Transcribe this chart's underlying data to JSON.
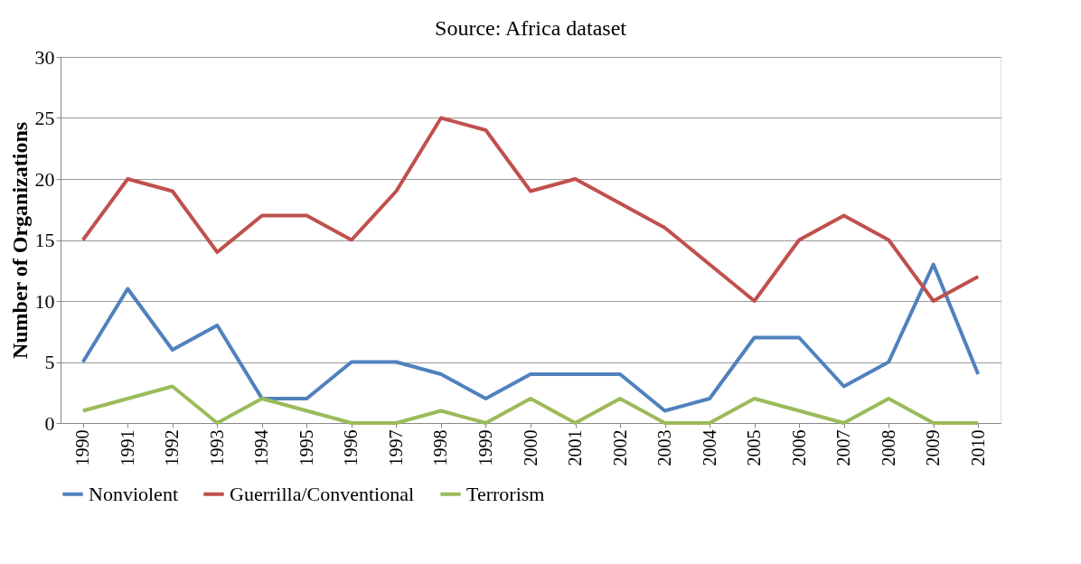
{
  "chart_data": {
    "type": "line",
    "title": "Source: Africa dataset",
    "ylabel": "Number of Organizations",
    "categories": [
      "1990",
      "1991",
      "1992",
      "1993",
      "1994",
      "1995",
      "1996",
      "1997",
      "1998",
      "1999",
      "2000",
      "2001",
      "2002",
      "2003",
      "2004",
      "2005",
      "2006",
      "2007",
      "2008",
      "2009",
      "2010"
    ],
    "series": [
      {
        "name": "Nonviolent",
        "color": "#4f81bd",
        "values": [
          5,
          11,
          6,
          8,
          2,
          2,
          5,
          5,
          4,
          2,
          4,
          4,
          4,
          1,
          2,
          7,
          7,
          3,
          5,
          13,
          4
        ]
      },
      {
        "name": "Guerrilla/Conventional",
        "color": "#c0504d",
        "values": [
          15,
          20,
          19,
          14,
          17,
          17,
          15,
          19,
          25,
          24,
          19,
          20,
          18,
          16,
          13,
          10,
          15,
          17,
          15,
          10,
          12
        ]
      },
      {
        "name": "Terrorism",
        "color": "#9bbb59",
        "values": [
          1,
          2,
          3,
          0,
          2,
          1,
          0,
          0,
          1,
          0,
          2,
          0,
          2,
          0,
          0,
          2,
          1,
          0,
          2,
          0,
          0
        ]
      }
    ],
    "ylim": [
      0,
      30
    ],
    "yticks": [
      0,
      5,
      10,
      15,
      20,
      25,
      30
    ],
    "grid": "y",
    "legend": "bottom",
    "marker": "none",
    "line_style": "solid"
  }
}
